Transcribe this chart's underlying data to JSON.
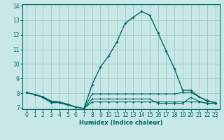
{
  "xlabel": "Humidex (Indice chaleur)",
  "bg_color": "#c8e8e8",
  "grid_color": "#a8cccc",
  "line_color": "#006666",
  "xlim": [
    -0.5,
    23.5
  ],
  "ylim": [
    6.9,
    14.1
  ],
  "yticks": [
    7,
    8,
    9,
    10,
    11,
    12,
    13,
    14
  ],
  "xticks": [
    0,
    1,
    2,
    3,
    4,
    5,
    6,
    7,
    8,
    9,
    10,
    11,
    12,
    13,
    14,
    15,
    16,
    17,
    18,
    19,
    20,
    21,
    22,
    23
  ],
  "lines": [
    {
      "x": [
        0,
        1,
        2,
        3,
        4,
        5,
        6,
        7,
        8,
        9,
        10,
        11,
        12,
        13,
        14,
        15,
        16,
        17,
        18,
        19,
        20,
        21,
        22,
        23
      ],
      "y": [
        8.05,
        7.9,
        7.75,
        7.45,
        7.4,
        7.25,
        7.05,
        6.95,
        8.6,
        9.8,
        10.55,
        11.5,
        12.8,
        13.2,
        13.6,
        13.35,
        12.15,
        10.9,
        9.7,
        8.2,
        8.2,
        7.75,
        7.45,
        7.35
      ]
    },
    {
      "x": [
        0,
        1,
        2,
        3,
        4,
        5,
        6,
        7,
        8,
        9,
        10,
        11,
        12,
        13,
        14,
        15,
        16,
        17,
        18,
        19,
        20,
        21,
        22,
        23
      ],
      "y": [
        8.05,
        7.9,
        7.75,
        7.45,
        7.35,
        7.2,
        7.05,
        6.95,
        7.95,
        7.95,
        7.95,
        7.95,
        7.95,
        7.95,
        7.95,
        7.95,
        7.95,
        7.95,
        7.95,
        8.05,
        8.05,
        7.75,
        7.5,
        7.35
      ]
    },
    {
      "x": [
        0,
        1,
        2,
        3,
        4,
        5,
        6,
        7,
        8,
        9,
        10,
        11,
        12,
        13,
        14,
        15,
        16,
        17,
        18,
        19,
        20,
        21,
        22,
        23
      ],
      "y": [
        8.05,
        7.9,
        7.7,
        7.35,
        7.35,
        7.2,
        7.05,
        6.95,
        7.6,
        7.6,
        7.6,
        7.6,
        7.6,
        7.6,
        7.6,
        7.6,
        7.3,
        7.3,
        7.3,
        7.3,
        7.7,
        7.45,
        7.3,
        7.3
      ]
    },
    {
      "x": [
        0,
        1,
        2,
        3,
        4,
        5,
        6,
        7,
        8,
        9,
        10,
        11,
        12,
        13,
        14,
        15,
        16,
        17,
        18,
        19,
        20,
        21,
        22,
        23
      ],
      "y": [
        8.05,
        7.9,
        7.7,
        7.35,
        7.35,
        7.2,
        7.05,
        6.95,
        7.4,
        7.4,
        7.4,
        7.4,
        7.4,
        7.4,
        7.4,
        7.4,
        7.4,
        7.4,
        7.4,
        7.4,
        7.4,
        7.4,
        7.3,
        7.3
      ]
    }
  ]
}
